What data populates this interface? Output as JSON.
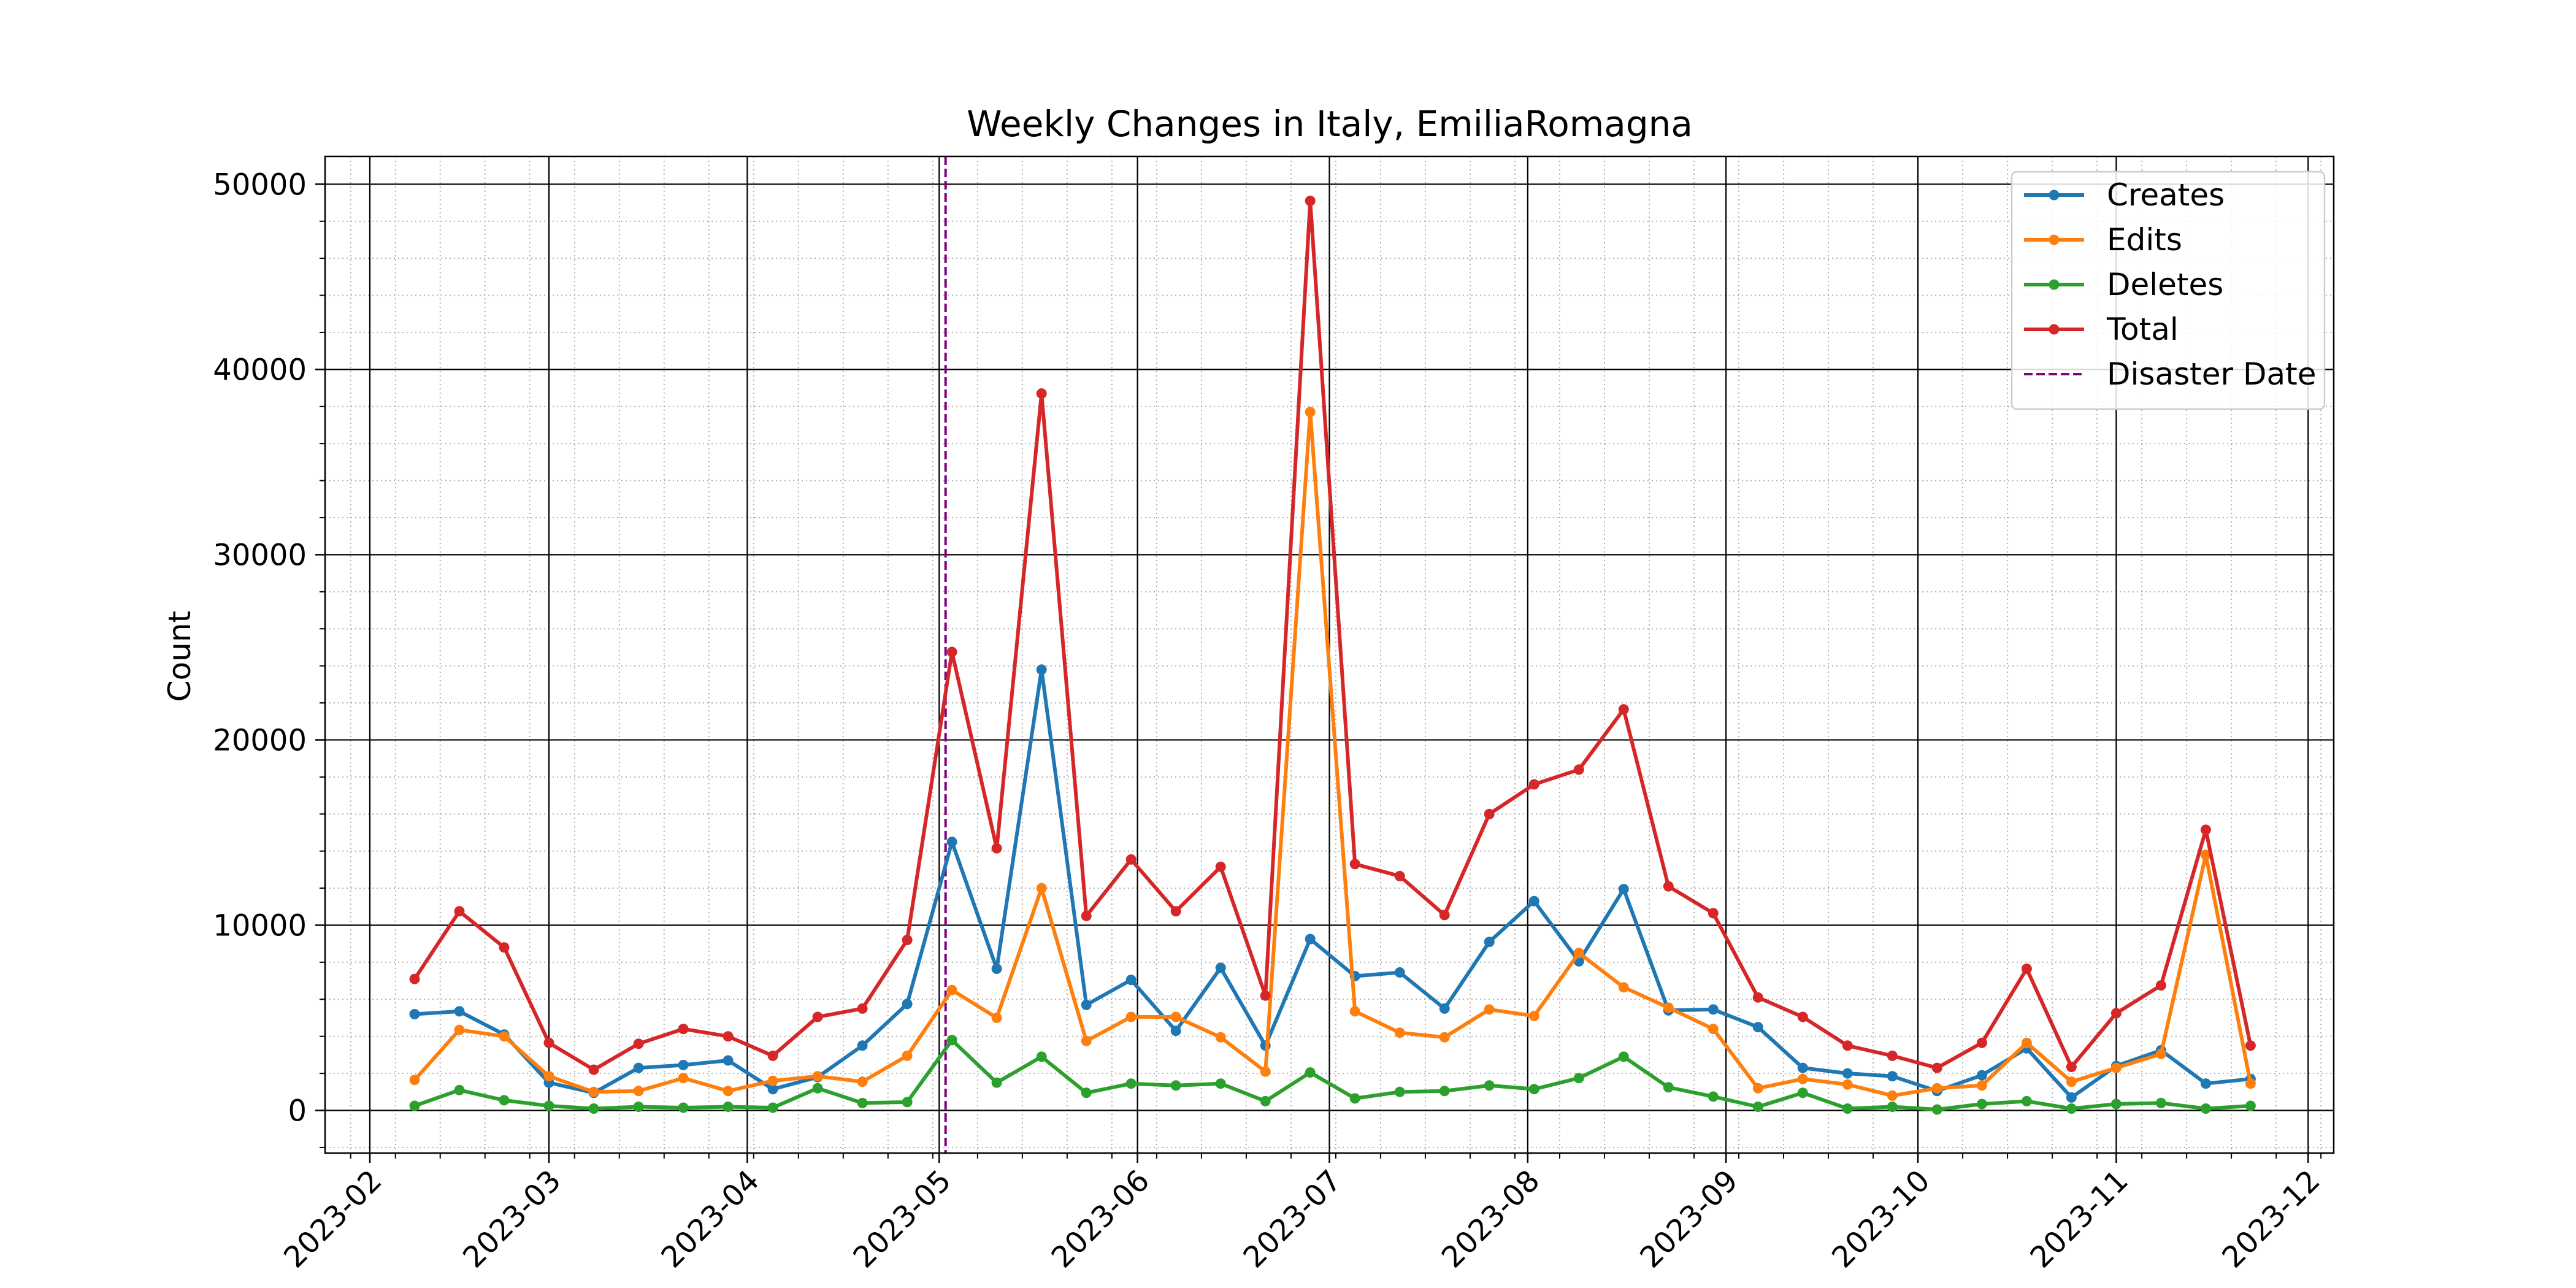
{
  "chart_data": {
    "type": "line",
    "title": "Weekly Changes in Italy, EmiliaRomagna",
    "xlabel": "",
    "ylabel": "Count",
    "x_axis": {
      "kind": "date",
      "range": [
        "2023-01-25",
        "2023-12-05"
      ],
      "tick_labels": [
        "2023-02",
        "2023-03",
        "2023-04",
        "2023-05",
        "2023-06",
        "2023-07",
        "2023-08",
        "2023-09",
        "2023-10",
        "2023-11",
        "2023-12"
      ]
    },
    "y_axis": {
      "range": [
        -2300,
        51500
      ],
      "ticks": [
        0,
        10000,
        20000,
        30000,
        40000,
        50000
      ],
      "tick_labels": [
        "0",
        "10000",
        "20000",
        "30000",
        "40000",
        "50000"
      ]
    },
    "grid": {
      "major": true,
      "minor": true,
      "major_style": "solid",
      "minor_style": "dotted"
    },
    "legend": {
      "placement": "top-right"
    },
    "x": [
      "2023-02-08",
      "2023-02-15",
      "2023-02-22",
      "2023-03-01",
      "2023-03-08",
      "2023-03-15",
      "2023-03-22",
      "2023-03-29",
      "2023-04-05",
      "2023-04-12",
      "2023-04-19",
      "2023-04-26",
      "2023-05-03",
      "2023-05-10",
      "2023-05-17",
      "2023-05-24",
      "2023-05-31",
      "2023-06-07",
      "2023-06-14",
      "2023-06-21",
      "2023-06-28",
      "2023-07-05",
      "2023-07-12",
      "2023-07-19",
      "2023-07-26",
      "2023-08-02",
      "2023-08-09",
      "2023-08-16",
      "2023-08-23",
      "2023-08-30",
      "2023-09-06",
      "2023-09-13",
      "2023-09-20",
      "2023-09-27",
      "2023-10-04",
      "2023-10-11",
      "2023-10-18",
      "2023-10-25",
      "2023-11-01",
      "2023-11-08",
      "2023-11-15",
      "2023-11-22"
    ],
    "series": [
      {
        "name": "Creates",
        "color": "#1f77b4",
        "values": [
          5200,
          5350,
          4100,
          1500,
          950,
          2300,
          2450,
          2700,
          1150,
          1800,
          3500,
          5750,
          14500,
          7650,
          23800,
          5700,
          7050,
          4300,
          7700,
          3500,
          9250,
          7250,
          7450,
          5500,
          9100,
          11300,
          8050,
          11950,
          5400,
          5450,
          4500,
          2300,
          2000,
          1850,
          1050,
          1900,
          3350,
          700,
          2400,
          3250,
          1450,
          1700
        ]
      },
      {
        "name": "Edits",
        "color": "#ff7f0e",
        "values": [
          1650,
          4350,
          4000,
          1850,
          1000,
          1050,
          1750,
          1050,
          1600,
          1850,
          1550,
          2950,
          6500,
          5000,
          12000,
          3750,
          5050,
          5050,
          3950,
          2100,
          37700,
          5350,
          4200,
          3950,
          5450,
          5100,
          8500,
          6650,
          5550,
          4400,
          1200,
          1700,
          1400,
          800,
          1200,
          1350,
          3650,
          1550,
          2300,
          3050,
          13800,
          1450
        ]
      },
      {
        "name": "Deletes",
        "color": "#2ca02c",
        "values": [
          250,
          1100,
          550,
          250,
          100,
          200,
          150,
          200,
          150,
          1200,
          400,
          450,
          3800,
          1500,
          2900,
          950,
          1450,
          1350,
          1450,
          500,
          2050,
          650,
          1000,
          1050,
          1350,
          1150,
          1750,
          2900,
          1250,
          750,
          200,
          950,
          100,
          200,
          50,
          350,
          500,
          100,
          350,
          400,
          100,
          250
        ]
      },
      {
        "name": "Total",
        "color": "#d62728",
        "values": [
          7100,
          10750,
          8800,
          3650,
          2200,
          3600,
          4400,
          4000,
          2950,
          5050,
          5500,
          9200,
          24750,
          14150,
          38700,
          10500,
          13550,
          10750,
          13150,
          6200,
          49100,
          13300,
          12650,
          10550,
          16000,
          17600,
          18400,
          21650,
          12100,
          10650,
          6100,
          5050,
          3500,
          2950,
          2300,
          3650,
          7650,
          2350,
          5250,
          6750,
          15150,
          3500
        ]
      }
    ],
    "annotations": [
      {
        "name": "Disaster Date",
        "type": "vertical-line",
        "x": "2023-05-02",
        "style": "dashed",
        "color": "#800080"
      }
    ]
  }
}
